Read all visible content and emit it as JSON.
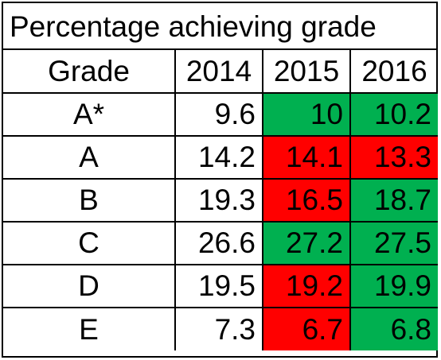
{
  "chart_data": {
    "type": "table",
    "title": "Percentage achieving grade",
    "columns": [
      "Grade",
      "2014",
      "2015",
      "2016"
    ],
    "rows": [
      {
        "grade": "A*",
        "values": [
          "9.6",
          "10",
          "10.2"
        ],
        "status": [
          "none",
          "up",
          "up"
        ]
      },
      {
        "grade": "A",
        "values": [
          "14.2",
          "14.1",
          "13.3"
        ],
        "status": [
          "none",
          "down",
          "down"
        ]
      },
      {
        "grade": "B",
        "values": [
          "19.3",
          "16.5",
          "18.7"
        ],
        "status": [
          "none",
          "down",
          "up"
        ]
      },
      {
        "grade": "C",
        "values": [
          "26.6",
          "27.2",
          "27.5"
        ],
        "status": [
          "none",
          "up",
          "up"
        ]
      },
      {
        "grade": "D",
        "values": [
          "19.5",
          "19.2",
          "19.9"
        ],
        "status": [
          "none",
          "down",
          "up"
        ]
      },
      {
        "grade": "E",
        "values": [
          "7.3",
          "6.7",
          "6.8"
        ],
        "status": [
          "none",
          "down",
          "up"
        ]
      }
    ],
    "colors": {
      "up": "#00b050",
      "down": "#ff0000"
    }
  }
}
